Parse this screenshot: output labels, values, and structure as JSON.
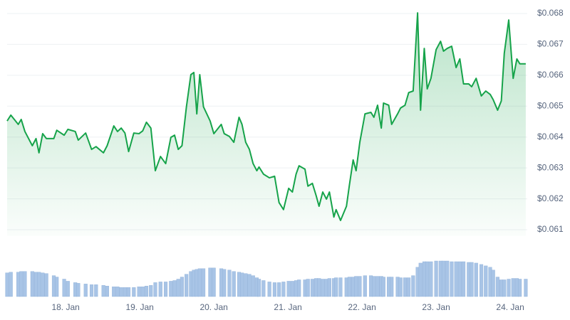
{
  "chart_data": {
    "type": "line",
    "color": "#16a34a",
    "volume_color": "#a8c4e6",
    "grid": true,
    "x": [
      17.21,
      17.26,
      17.36,
      17.4,
      17.45,
      17.55,
      17.6,
      17.64,
      17.69,
      17.74,
      17.84,
      17.88,
      17.98,
      18.03,
      18.13,
      18.17,
      18.27,
      18.35,
      18.41,
      18.51,
      18.56,
      18.65,
      18.7,
      18.75,
      18.8,
      18.85,
      18.92,
      18.99,
      19.04,
      19.09,
      19.15,
      19.21,
      19.28,
      19.35,
      19.42,
      19.47,
      19.52,
      19.57,
      19.63,
      19.69,
      19.73,
      19.77,
      19.81,
      19.86,
      19.95,
      20.0,
      20.1,
      20.14,
      20.21,
      20.27,
      20.34,
      20.38,
      20.43,
      20.48,
      20.53,
      20.58,
      20.61,
      20.67,
      20.75,
      20.82,
      20.88,
      20.94,
      21.01,
      21.06,
      21.11,
      21.15,
      21.23,
      21.27,
      21.33,
      21.38,
      21.42,
      21.47,
      21.52,
      21.56,
      21.62,
      21.65,
      21.71,
      21.79,
      21.83,
      21.88,
      21.92,
      21.97,
      22.04,
      22.12,
      22.16,
      22.21,
      22.26,
      22.29,
      22.36,
      22.4,
      22.48,
      22.52,
      22.58,
      22.63,
      22.69,
      22.75,
      22.79,
      22.84,
      22.88,
      22.93,
      23.0,
      23.06,
      23.1,
      23.15,
      23.21,
      23.27,
      23.32,
      23.37,
      23.44,
      23.48,
      23.54,
      23.61,
      23.67,
      23.73,
      23.77,
      23.83,
      23.88,
      23.92,
      23.98,
      24.04,
      24.09,
      24.13,
      24.21
    ],
    "values": [
      0.06452,
      0.06471,
      0.06441,
      0.06457,
      0.06418,
      0.06372,
      0.06395,
      0.06349,
      0.06411,
      0.06395,
      0.06395,
      0.06422,
      0.06406,
      0.06425,
      0.06418,
      0.0639,
      0.06413,
      0.0636,
      0.06369,
      0.06349,
      0.06372,
      0.06436,
      0.06418,
      0.06429,
      0.06413,
      0.06353,
      0.06413,
      0.06411,
      0.0642,
      0.06448,
      0.06429,
      0.06291,
      0.06337,
      0.06314,
      0.06399,
      0.06406,
      0.0636,
      0.06372,
      0.06498,
      0.06602,
      0.06609,
      0.06475,
      0.06602,
      0.06498,
      0.06452,
      0.06411,
      0.06441,
      0.06411,
      0.06402,
      0.06383,
      0.06464,
      0.06441,
      0.06383,
      0.0636,
      0.06314,
      0.06291,
      0.06303,
      0.0628,
      0.06268,
      0.06273,
      0.06188,
      0.06165,
      0.06234,
      0.06222,
      0.0628,
      0.06307,
      0.06296,
      0.06241,
      0.0625,
      0.06211,
      0.06176,
      0.06222,
      0.06199,
      0.06222,
      0.06141,
      0.06165,
      0.0613,
      0.06176,
      0.06245,
      0.06326,
      0.06291,
      0.06383,
      0.06475,
      0.0648,
      0.06464,
      0.06503,
      0.06429,
      0.0651,
      0.06503,
      0.06441,
      0.06475,
      0.06494,
      0.06503,
      0.06544,
      0.06549,
      0.06802,
      0.06487,
      0.06687,
      0.06556,
      0.0659,
      0.06683,
      0.0671,
      0.06678,
      0.06687,
      0.06694,
      0.06625,
      0.06653,
      0.06572,
      0.06572,
      0.06563,
      0.0659,
      0.06533,
      0.06549,
      0.06538,
      0.06521,
      0.06487,
      0.06517,
      0.06671,
      0.06779,
      0.0659,
      0.06653,
      0.06637,
      0.06637
    ],
    "volume": [
      34,
      35,
      35,
      36,
      36,
      36,
      35,
      35,
      34,
      33,
      30,
      28,
      25,
      22,
      20,
      19,
      18,
      17,
      17,
      16,
      15,
      14,
      14,
      13,
      13,
      13,
      13,
      14,
      14,
      15,
      16,
      20,
      21,
      21,
      22,
      23,
      25,
      28,
      32,
      36,
      38,
      39,
      40,
      40,
      41,
      41,
      40,
      39,
      38,
      36,
      35,
      34,
      33,
      32,
      30,
      27,
      25,
      23,
      21,
      20,
      20,
      21,
      22,
      22,
      23,
      24,
      24,
      25,
      25,
      26,
      26,
      25,
      25,
      26,
      26,
      27,
      27,
      27,
      28,
      28,
      29,
      29,
      30,
      30,
      29,
      29,
      29,
      28,
      28,
      28,
      28,
      27,
      27,
      27,
      30,
      42,
      48,
      50,
      50,
      50,
      51,
      51,
      51,
      51,
      50,
      50,
      50,
      50,
      49,
      49,
      48,
      46,
      44,
      42,
      38,
      28,
      24,
      24,
      25,
      26,
      26,
      25,
      25
    ],
    "xlim": [
      17.21,
      24.23
    ],
    "xticks": [
      {
        "value": 18,
        "label": "18. Jan"
      },
      {
        "value": 19,
        "label": "19. Jan"
      },
      {
        "value": 20,
        "label": "20. Jan"
      },
      {
        "value": 21,
        "label": "21. Jan"
      },
      {
        "value": 22,
        "label": "22. Jan"
      },
      {
        "value": 23,
        "label": "23. Jan"
      },
      {
        "value": 24,
        "label": "24. Jan"
      }
    ],
    "ylim": [
      0.0608,
      0.0682
    ],
    "yticks": [
      {
        "value": 0.061,
        "label": "$0.061"
      },
      {
        "value": 0.062,
        "label": "$0.062"
      },
      {
        "value": 0.063,
        "label": "$0.063"
      },
      {
        "value": 0.064,
        "label": "$0.064"
      },
      {
        "value": 0.065,
        "label": "$0.065"
      },
      {
        "value": 0.066,
        "label": "$0.066"
      },
      {
        "value": 0.067,
        "label": "$0.067"
      },
      {
        "value": 0.068,
        "label": "$0.068"
      }
    ]
  }
}
